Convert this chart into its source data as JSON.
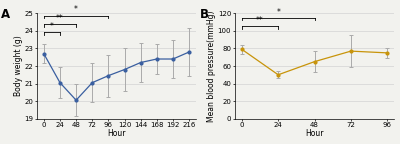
{
  "panel_A": {
    "x": [
      0,
      24,
      48,
      72,
      96,
      120,
      144,
      168,
      192,
      216
    ],
    "y": [
      22.7,
      21.05,
      20.05,
      21.05,
      21.45,
      21.8,
      22.2,
      22.4,
      22.4,
      22.8
    ],
    "yerr": [
      0.55,
      0.9,
      0.9,
      1.1,
      1.2,
      1.2,
      1.1,
      0.85,
      1.1,
      1.35
    ],
    "color": "#3a5fa0",
    "ylabel": "Body weight (g)",
    "xlabel": "Hour",
    "ylim": [
      19,
      25
    ],
    "yticks": [
      19,
      20,
      21,
      22,
      23,
      24,
      25
    ],
    "xticks": [
      0,
      24,
      48,
      72,
      96,
      120,
      144,
      168,
      192,
      216
    ],
    "label": "A",
    "sig_bars": [
      {
        "x1": 0,
        "x2": 24,
        "y_ax": 0.82,
        "label": "*"
      },
      {
        "x1": 0,
        "x2": 48,
        "y_ax": 0.9,
        "label": "**"
      },
      {
        "x1": 0,
        "x2": 96,
        "y_ax": 0.98,
        "label": "*"
      }
    ]
  },
  "panel_B": {
    "x": [
      0,
      24,
      48,
      72,
      96
    ],
    "y": [
      79,
      50,
      65,
      77,
      75
    ],
    "yerr": [
      5,
      4,
      12,
      18,
      6
    ],
    "color": "#c8940a",
    "ylabel": "Mean blood pressure(mmHg)",
    "xlabel": "Hour",
    "ylim": [
      0,
      120
    ],
    "yticks": [
      0,
      20,
      40,
      60,
      80,
      100,
      120
    ],
    "xticks": [
      0,
      24,
      48,
      72,
      96
    ],
    "label": "B",
    "sig_bars": [
      {
        "x1": 0,
        "x2": 24,
        "y_ax": 0.88,
        "label": "**"
      },
      {
        "x1": 0,
        "x2": 48,
        "y_ax": 0.96,
        "label": "*"
      }
    ]
  },
  "background_color": "#f2f2ee",
  "grid_color": "#cccccc",
  "fontsize": 5.5
}
